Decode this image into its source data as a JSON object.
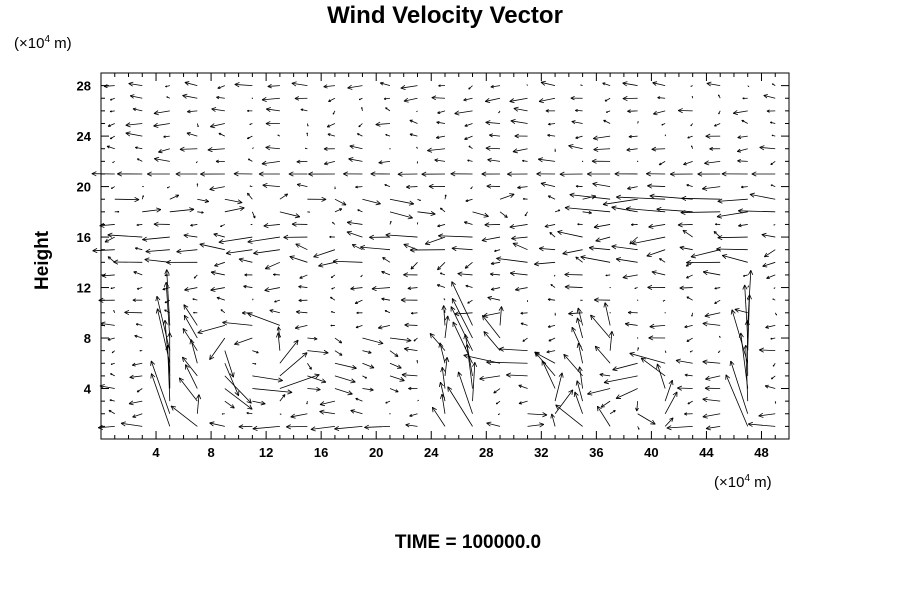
{
  "chart_data": {
    "type": "vector_field",
    "title": "Wind Velocity Vector",
    "ylabel": "Height",
    "x_unit": {
      "prefix": "(×10",
      "exp": "4",
      "suffix": " m)"
    },
    "y_unit": {
      "prefix": "(×10",
      "exp": "4",
      "suffix": " m)"
    },
    "xlim": [
      0,
      50
    ],
    "ylim": [
      0,
      29
    ],
    "x_ticks": [
      4,
      8,
      12,
      16,
      20,
      24,
      28,
      32,
      36,
      40,
      44,
      48
    ],
    "y_ticks": [
      4,
      8,
      12,
      16,
      20,
      24,
      28
    ],
    "grid": false,
    "grid_spacing_x": 2,
    "grid_spacing_y": 1,
    "annotation": "TIME = 100000.0",
    "notes": "Quiver plot of wind velocity vectors on a regular grid; strong circulation cells near the surface at x≈4–6, 26–34, 36–42, 46–50; upper-level westerly-like flow near height 18–21."
  },
  "colors": {
    "axes": "#000000",
    "arrows": "#000000",
    "background": "#ffffff"
  }
}
